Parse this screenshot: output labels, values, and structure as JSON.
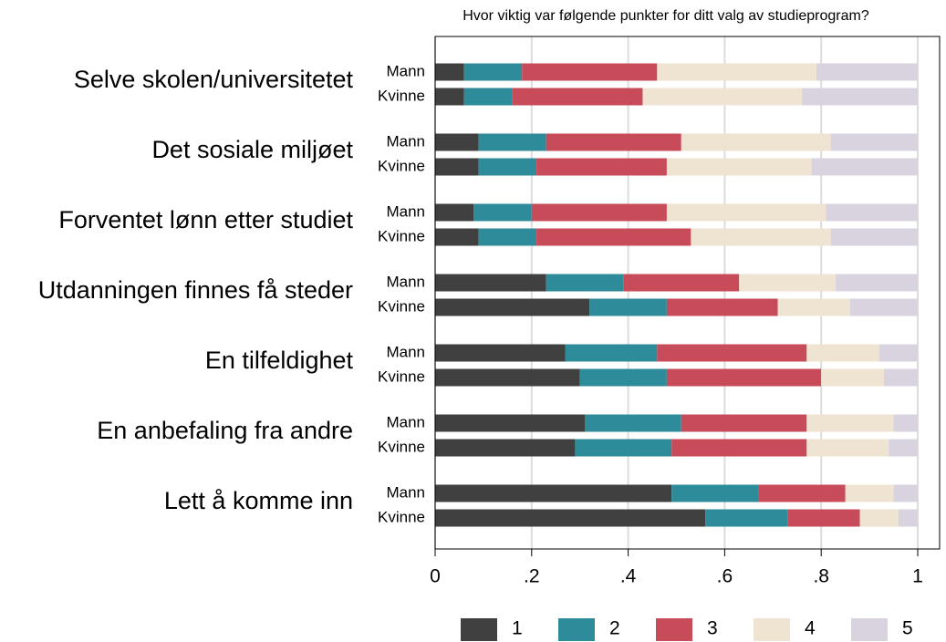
{
  "chart_data": {
    "type": "stacked-barh",
    "title": "Hvor viktig var følgende punkter for ditt valg av studieprogram?",
    "groups": [
      "Selve skolen/universitetet",
      "Det sosiale miljøet",
      "Forventet lønn etter studiet",
      "Utdanningen finnes få steder",
      "En tilfeldighet",
      "En anbefaling fra andre",
      "Lett å komme inn"
    ],
    "categories": [
      "Mann",
      "Kvinne",
      "Mann",
      "Kvinne",
      "Mann",
      "Kvinne",
      "Mann",
      "Kvinne",
      "Mann",
      "Kvinne",
      "Mann",
      "Kvinne",
      "Mann",
      "Kvinne"
    ],
    "series": [
      {
        "name": "1",
        "color": "#404040",
        "values": [
          0.06,
          0.06,
          0.09,
          0.09,
          0.08,
          0.09,
          0.23,
          0.32,
          0.27,
          0.3,
          0.31,
          0.29,
          0.49,
          0.56
        ]
      },
      {
        "name": "2",
        "color": "#2e8b9a",
        "values": [
          0.12,
          0.1,
          0.14,
          0.12,
          0.12,
          0.12,
          0.16,
          0.16,
          0.19,
          0.18,
          0.2,
          0.2,
          0.18,
          0.17
        ]
      },
      {
        "name": "3",
        "color": "#c84b5a",
        "values": [
          0.28,
          0.27,
          0.28,
          0.27,
          0.28,
          0.32,
          0.24,
          0.23,
          0.31,
          0.32,
          0.26,
          0.28,
          0.18,
          0.15
        ]
      },
      {
        "name": "4",
        "color": "#efe3d2",
        "values": [
          0.33,
          0.33,
          0.31,
          0.3,
          0.33,
          0.29,
          0.2,
          0.15,
          0.15,
          0.13,
          0.18,
          0.17,
          0.1,
          0.08
        ]
      },
      {
        "name": "5",
        "color": "#d9d3e0",
        "values": [
          0.21,
          0.24,
          0.18,
          0.22,
          0.19,
          0.18,
          0.17,
          0.14,
          0.08,
          0.07,
          0.05,
          0.06,
          0.05,
          0.04
        ]
      }
    ],
    "xlim": [
      0,
      1
    ],
    "xticks": [
      0,
      {
        "value": 0.2,
        "label": ".2"
      },
      {
        "value": 0.4,
        "label": ".4"
      },
      {
        "value": 0.6,
        "label": ".6"
      },
      {
        "value": 0.8,
        "label": ".8"
      },
      1
    ],
    "grid": true
  }
}
